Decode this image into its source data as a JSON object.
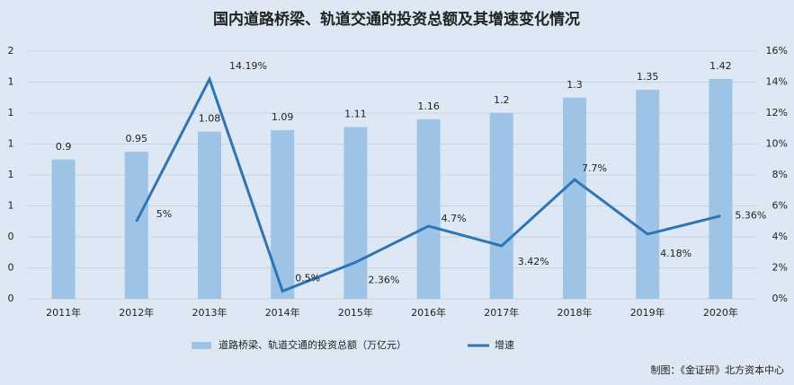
{
  "chart_data": {
    "type": "bar_line",
    "title": "国内道路桥梁、轨道交通的投资总额及其增速变化情况",
    "categories": [
      "2011年",
      "2012年",
      "2013年",
      "2014年",
      "2015年",
      "2016年",
      "2017年",
      "2018年",
      "2019年",
      "2020年"
    ],
    "series": [
      {
        "name": "道路桥梁、轨道交通的投资总额（万亿元）",
        "type": "bar",
        "color": "#9dc3e6",
        "axis": "y",
        "values": [
          0.9,
          0.95,
          1.08,
          1.09,
          1.11,
          1.16,
          1.2,
          1.3,
          1.35,
          1.42
        ]
      },
      {
        "name": "增速",
        "type": "line",
        "color": "#2e75b6",
        "axis": "y2",
        "values": [
          null,
          5,
          14.19,
          0.5,
          2.36,
          4.7,
          3.42,
          7.7,
          4.18,
          5.36
        ],
        "value_labels": [
          null,
          "5%",
          "14.19%",
          "0.5%",
          "2.36%",
          "4.7%",
          "3.42%",
          "7.7%",
          "4.18%",
          "5.36%"
        ]
      }
    ],
    "ylim": [
      0,
      1.6
    ],
    "yticks": [
      {
        "value": 0,
        "label": "0"
      },
      {
        "value": 0.2,
        "label": "0"
      },
      {
        "value": 0.4,
        "label": "0"
      },
      {
        "value": 0.6,
        "label": "1"
      },
      {
        "value": 0.8,
        "label": "1"
      },
      {
        "value": 1.0,
        "label": "1"
      },
      {
        "value": 1.2,
        "label": "1"
      },
      {
        "value": 1.4,
        "label": "1"
      },
      {
        "value": 1.6,
        "label": "2"
      }
    ],
    "y2lim": [
      0,
      16
    ],
    "y2ticks": [
      {
        "value": 0,
        "label": "0%"
      },
      {
        "value": 2,
        "label": "2%"
      },
      {
        "value": 4,
        "label": "4%"
      },
      {
        "value": 6,
        "label": "6%"
      },
      {
        "value": 8,
        "label": "8%"
      },
      {
        "value": 10,
        "label": "10%"
      },
      {
        "value": 12,
        "label": "12%"
      },
      {
        "value": 14,
        "label": "14%"
      },
      {
        "value": 16,
        "label": "16%"
      }
    ],
    "grid": true,
    "legend": "bottom",
    "source": "制图：《金证研》北方资本中心"
  }
}
